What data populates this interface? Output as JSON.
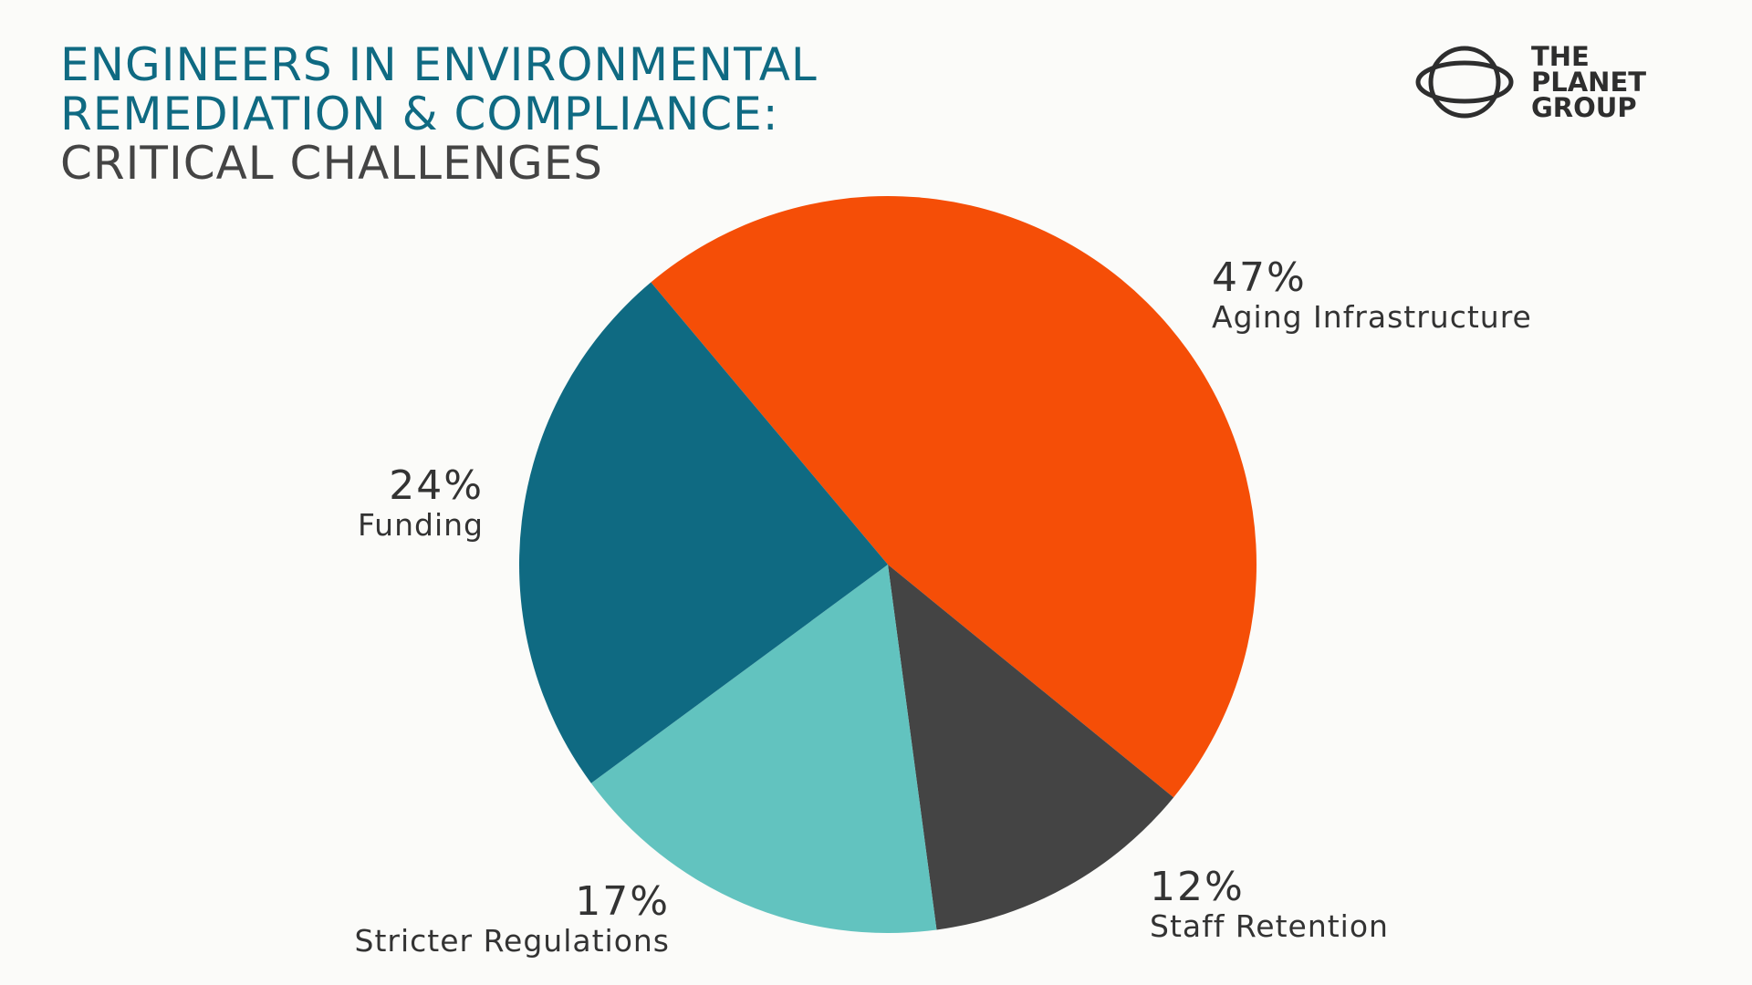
{
  "title": {
    "line1": "ENGINEERS IN ENVIRONMENTAL",
    "line2": "REMEDIATION & COMPLIANCE:",
    "line3": "CRITICAL CHALLENGES"
  },
  "logo": {
    "line1": "THE",
    "line2": "PLANET",
    "line3": "GROUP",
    "icon": "planet-orbit-icon"
  },
  "colors": {
    "background": "#fbfbf9",
    "title_accent": "#0f6a82",
    "title_secondary": "#444444"
  },
  "chart_data": {
    "type": "pie",
    "slices": [
      {
        "label": "Aging Infrastructure",
        "value": 47,
        "display": "47%",
        "color": "#f54e07"
      },
      {
        "label": "Staff Retention",
        "value": 12,
        "display": "12%",
        "color": "#444444"
      },
      {
        "label": "Stricter Regulations",
        "value": 17,
        "display": "17%",
        "color": "#62c3bf"
      },
      {
        "label": "Funding",
        "value": 24,
        "display": "24%",
        "color": "#0f6a82"
      }
    ],
    "legend": "none"
  }
}
